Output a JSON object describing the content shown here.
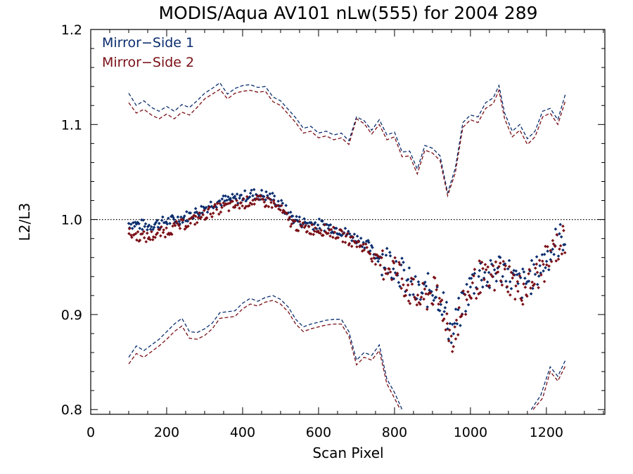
{
  "chart_data": {
    "type": "scatter",
    "title": "MODIS/Aqua AV101 nLw(555) for 2004 289",
    "xlabel": "Scan Pixel",
    "ylabel": "L2/L3",
    "xlim": [
      0,
      1354
    ],
    "ylim": [
      0.795,
      1.2
    ],
    "xticks": [
      0,
      200,
      400,
      600,
      800,
      1000,
      1200
    ],
    "xtick_labels": [
      "0",
      "200",
      "400",
      "600",
      "800",
      "1000",
      "1200"
    ],
    "yticks": [
      0.8,
      0.9,
      1.0,
      1.1,
      1.2
    ],
    "ytick_labels": [
      "0.8",
      "0.9",
      "1.0",
      "1.1",
      "1.2"
    ],
    "reference_line": {
      "y": 1.0,
      "style": "dotted"
    },
    "legend": {
      "placement": "top-left",
      "entries": [
        {
          "label": "Mirror−Side 1",
          "color": "#0a2d6e"
        },
        {
          "label": "Mirror−Side 2",
          "color": "#7a0f16"
        }
      ]
    },
    "series": [
      {
        "name": "Mirror−Side 1",
        "color": "#0a2d6e",
        "points": [
          [
            100,
            0.996
          ],
          [
            125,
            0.995
          ],
          [
            150,
            0.993
          ],
          [
            175,
            0.996
          ],
          [
            200,
            0.998
          ],
          [
            225,
            1.0
          ],
          [
            250,
            1.003
          ],
          [
            275,
            1.007
          ],
          [
            300,
            1.012
          ],
          [
            325,
            1.018
          ],
          [
            350,
            1.02
          ],
          [
            375,
            1.021
          ],
          [
            400,
            1.024
          ],
          [
            425,
            1.027
          ],
          [
            450,
            1.026
          ],
          [
            475,
            1.024
          ],
          [
            500,
            1.016
          ],
          [
            525,
            1.004
          ],
          [
            550,
            0.998
          ],
          [
            575,
            0.996
          ],
          [
            600,
            0.995
          ],
          [
            625,
            0.993
          ],
          [
            650,
            0.99
          ],
          [
            675,
            0.985
          ],
          [
            700,
            0.98
          ],
          [
            725,
            0.975
          ],
          [
            750,
            0.962
          ],
          [
            775,
            0.958
          ],
          [
            800,
            0.955
          ],
          [
            825,
            0.94
          ],
          [
            850,
            0.925
          ],
          [
            875,
            0.92
          ],
          [
            900,
            0.93
          ],
          [
            925,
            0.915
          ],
          [
            950,
            0.88
          ],
          [
            975,
            0.905
          ],
          [
            1000,
            0.93
          ],
          [
            1025,
            0.945
          ],
          [
            1050,
            0.938
          ],
          [
            1075,
            0.95
          ],
          [
            1100,
            0.945
          ],
          [
            1125,
            0.93
          ],
          [
            1150,
            0.935
          ],
          [
            1175,
            0.945
          ],
          [
            1200,
            0.96
          ],
          [
            1225,
            0.975
          ],
          [
            1250,
            0.985
          ]
        ],
        "upper_band": [
          [
            100,
            1.133
          ],
          [
            120,
            1.12
          ],
          [
            140,
            1.125
          ],
          [
            160,
            1.118
          ],
          [
            180,
            1.114
          ],
          [
            200,
            1.119
          ],
          [
            220,
            1.114
          ],
          [
            240,
            1.121
          ],
          [
            260,
            1.118
          ],
          [
            280,
            1.125
          ],
          [
            300,
            1.133
          ],
          [
            320,
            1.138
          ],
          [
            340,
            1.144
          ],
          [
            360,
            1.132
          ],
          [
            380,
            1.138
          ],
          [
            400,
            1.141
          ],
          [
            420,
            1.142
          ],
          [
            440,
            1.139
          ],
          [
            460,
            1.14
          ],
          [
            480,
            1.129
          ],
          [
            500,
            1.125
          ],
          [
            520,
            1.116
          ],
          [
            540,
            1.107
          ],
          [
            560,
            1.096
          ],
          [
            580,
            1.098
          ],
          [
            600,
            1.091
          ],
          [
            620,
            1.093
          ],
          [
            640,
            1.089
          ],
          [
            660,
            1.091
          ],
          [
            680,
            1.083
          ],
          [
            700,
            1.108
          ],
          [
            720,
            1.104
          ],
          [
            740,
            1.094
          ],
          [
            760,
            1.105
          ],
          [
            780,
            1.089
          ],
          [
            800,
            1.092
          ],
          [
            820,
            1.071
          ],
          [
            840,
            1.072
          ],
          [
            860,
            1.053
          ],
          [
            880,
            1.078
          ],
          [
            900,
            1.075
          ],
          [
            920,
            1.067
          ],
          [
            940,
            1.028
          ],
          [
            960,
            1.054
          ],
          [
            980,
            1.102
          ],
          [
            1000,
            1.11
          ],
          [
            1020,
            1.108
          ],
          [
            1040,
            1.123
          ],
          [
            1060,
            1.128
          ],
          [
            1075,
            1.141
          ],
          [
            1090,
            1.112
          ],
          [
            1110,
            1.093
          ],
          [
            1130,
            1.1
          ],
          [
            1150,
            1.085
          ],
          [
            1170,
            1.093
          ],
          [
            1190,
            1.114
          ],
          [
            1210,
            1.117
          ],
          [
            1230,
            1.105
          ],
          [
            1250,
            1.132
          ]
        ],
        "lower_band": [
          [
            100,
            0.855
          ],
          [
            120,
            0.867
          ],
          [
            140,
            0.862
          ],
          [
            160,
            0.868
          ],
          [
            180,
            0.874
          ],
          [
            200,
            0.882
          ],
          [
            220,
            0.89
          ],
          [
            240,
            0.896
          ],
          [
            260,
            0.882
          ],
          [
            280,
            0.881
          ],
          [
            300,
            0.885
          ],
          [
            320,
            0.891
          ],
          [
            340,
            0.902
          ],
          [
            360,
            0.903
          ],
          [
            380,
            0.904
          ],
          [
            400,
            0.912
          ],
          [
            420,
            0.917
          ],
          [
            440,
            0.914
          ],
          [
            460,
            0.918
          ],
          [
            480,
            0.92
          ],
          [
            500,
            0.916
          ],
          [
            520,
            0.908
          ],
          [
            540,
            0.895
          ],
          [
            560,
            0.887
          ],
          [
            580,
            0.89
          ],
          [
            600,
            0.892
          ],
          [
            620,
            0.894
          ],
          [
            640,
            0.895
          ],
          [
            660,
            0.895
          ],
          [
            680,
            0.882
          ],
          [
            700,
            0.852
          ],
          [
            720,
            0.86
          ],
          [
            740,
            0.857
          ],
          [
            760,
            0.868
          ],
          [
            780,
            0.832
          ],
          [
            800,
            0.818
          ],
          [
            820,
            0.8
          ]
        ],
        "lower_band_right": [
          [
            1160,
            0.8
          ],
          [
            1185,
            0.815
          ],
          [
            1210,
            0.845
          ],
          [
            1230,
            0.835
          ],
          [
            1250,
            0.852
          ]
        ]
      },
      {
        "name": "Mirror−Side 2",
        "color": "#7a0f16",
        "points": [
          [
            100,
            0.985
          ],
          [
            125,
            0.983
          ],
          [
            150,
            0.981
          ],
          [
            175,
            0.985
          ],
          [
            200,
            0.988
          ],
          [
            225,
            0.992
          ],
          [
            250,
            0.996
          ],
          [
            275,
            1.0
          ],
          [
            300,
            1.005
          ],
          [
            325,
            1.01
          ],
          [
            350,
            1.013
          ],
          [
            375,
            1.014
          ],
          [
            400,
            1.017
          ],
          [
            425,
            1.02
          ],
          [
            450,
            1.019
          ],
          [
            475,
            1.018
          ],
          [
            500,
            1.01
          ],
          [
            525,
            0.998
          ],
          [
            550,
            0.992
          ],
          [
            575,
            0.99
          ],
          [
            600,
            0.99
          ],
          [
            625,
            0.988
          ],
          [
            650,
            0.985
          ],
          [
            675,
            0.98
          ],
          [
            700,
            0.975
          ],
          [
            725,
            0.97
          ],
          [
            750,
            0.958
          ],
          [
            775,
            0.952
          ],
          [
            800,
            0.95
          ],
          [
            825,
            0.935
          ],
          [
            850,
            0.92
          ],
          [
            875,
            0.915
          ],
          [
            900,
            0.925
          ],
          [
            925,
            0.91
          ],
          [
            950,
            0.875
          ],
          [
            975,
            0.9
          ],
          [
            1000,
            0.925
          ],
          [
            1025,
            0.94
          ],
          [
            1050,
            0.933
          ],
          [
            1075,
            0.945
          ],
          [
            1100,
            0.94
          ],
          [
            1125,
            0.925
          ],
          [
            1150,
            0.93
          ],
          [
            1175,
            0.94
          ],
          [
            1200,
            0.955
          ],
          [
            1225,
            0.97
          ],
          [
            1250,
            0.98
          ]
        ],
        "upper_band": [
          [
            100,
            1.123
          ],
          [
            120,
            1.112
          ],
          [
            140,
            1.116
          ],
          [
            160,
            1.11
          ],
          [
            180,
            1.106
          ],
          [
            200,
            1.111
          ],
          [
            220,
            1.106
          ],
          [
            240,
            1.113
          ],
          [
            260,
            1.11
          ],
          [
            280,
            1.118
          ],
          [
            300,
            1.127
          ],
          [
            320,
            1.132
          ],
          [
            340,
            1.137
          ],
          [
            360,
            1.127
          ],
          [
            380,
            1.133
          ],
          [
            400,
            1.135
          ],
          [
            420,
            1.136
          ],
          [
            440,
            1.134
          ],
          [
            460,
            1.135
          ],
          [
            480,
            1.124
          ],
          [
            500,
            1.12
          ],
          [
            520,
            1.111
          ],
          [
            540,
            1.102
          ],
          [
            560,
            1.091
          ],
          [
            580,
            1.093
          ],
          [
            600,
            1.086
          ],
          [
            620,
            1.088
          ],
          [
            640,
            1.084
          ],
          [
            660,
            1.086
          ],
          [
            680,
            1.079
          ],
          [
            700,
            1.106
          ],
          [
            720,
            1.101
          ],
          [
            740,
            1.09
          ],
          [
            760,
            1.1
          ],
          [
            780,
            1.084
          ],
          [
            800,
            1.087
          ],
          [
            820,
            1.066
          ],
          [
            840,
            1.067
          ],
          [
            860,
            1.048
          ],
          [
            880,
            1.073
          ],
          [
            900,
            1.07
          ],
          [
            920,
            1.062
          ],
          [
            940,
            1.025
          ],
          [
            960,
            1.049
          ],
          [
            980,
            1.097
          ],
          [
            1000,
            1.105
          ],
          [
            1020,
            1.102
          ],
          [
            1040,
            1.117
          ],
          [
            1060,
            1.122
          ],
          [
            1075,
            1.136
          ],
          [
            1090,
            1.106
          ],
          [
            1110,
            1.087
          ],
          [
            1130,
            1.094
          ],
          [
            1150,
            1.079
          ],
          [
            1170,
            1.087
          ],
          [
            1190,
            1.108
          ],
          [
            1210,
            1.112
          ],
          [
            1230,
            1.1
          ],
          [
            1250,
            1.125
          ]
        ],
        "lower_band": [
          [
            100,
            0.848
          ],
          [
            120,
            0.859
          ],
          [
            140,
            0.855
          ],
          [
            160,
            0.861
          ],
          [
            180,
            0.867
          ],
          [
            200,
            0.874
          ],
          [
            220,
            0.882
          ],
          [
            240,
            0.888
          ],
          [
            260,
            0.875
          ],
          [
            280,
            0.874
          ],
          [
            300,
            0.878
          ],
          [
            320,
            0.885
          ],
          [
            340,
            0.896
          ],
          [
            360,
            0.897
          ],
          [
            380,
            0.898
          ],
          [
            400,
            0.906
          ],
          [
            420,
            0.911
          ],
          [
            440,
            0.909
          ],
          [
            460,
            0.913
          ],
          [
            480,
            0.915
          ],
          [
            500,
            0.911
          ],
          [
            520,
            0.903
          ],
          [
            540,
            0.89
          ],
          [
            560,
            0.882
          ],
          [
            580,
            0.885
          ],
          [
            600,
            0.887
          ],
          [
            620,
            0.889
          ],
          [
            640,
            0.89
          ],
          [
            660,
            0.89
          ],
          [
            680,
            0.877
          ],
          [
            700,
            0.847
          ],
          [
            720,
            0.855
          ],
          [
            740,
            0.852
          ],
          [
            760,
            0.862
          ],
          [
            780,
            0.827
          ],
          [
            800,
            0.812
          ],
          [
            815,
            0.8
          ]
        ],
        "lower_band_right": [
          [
            1165,
            0.8
          ],
          [
            1190,
            0.812
          ],
          [
            1210,
            0.84
          ],
          [
            1230,
            0.83
          ],
          [
            1250,
            0.846
          ]
        ]
      }
    ]
  }
}
